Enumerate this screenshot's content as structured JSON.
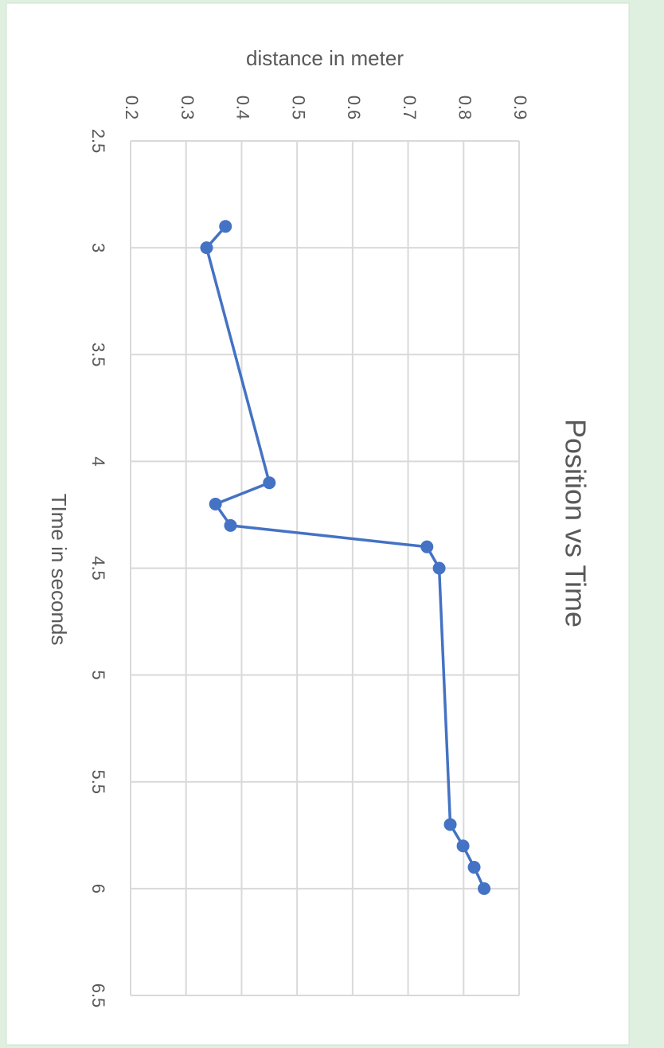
{
  "chart_data": {
    "type": "scatter",
    "title": "Position vs Time",
    "x_label": "TIme in seconds",
    "y_label": "distance in meter",
    "x": [
      2.9,
      3.0,
      4.1,
      4.2,
      4.3,
      4.4,
      4.5,
      5.7,
      5.8,
      5.9,
      6.0
    ],
    "series": [
      {
        "name": "distance",
        "color": "#4472c4",
        "values": [
          0.371,
          0.337,
          0.45,
          0.353,
          0.38,
          0.734,
          0.756,
          0.776,
          0.799,
          0.819,
          0.837
        ]
      }
    ],
    "xlim": [
      2.5,
      6.5
    ],
    "xticks": [
      2.5,
      3,
      3.5,
      4,
      4.5,
      5,
      5.5,
      6,
      6.5
    ],
    "ylim": [
      0.2,
      0.9
    ],
    "yticks": [
      0.2,
      0.3,
      0.4,
      0.5,
      0.6,
      0.7,
      0.8,
      0.9
    ],
    "grid": true,
    "markers": true,
    "orientation": "rotated"
  }
}
